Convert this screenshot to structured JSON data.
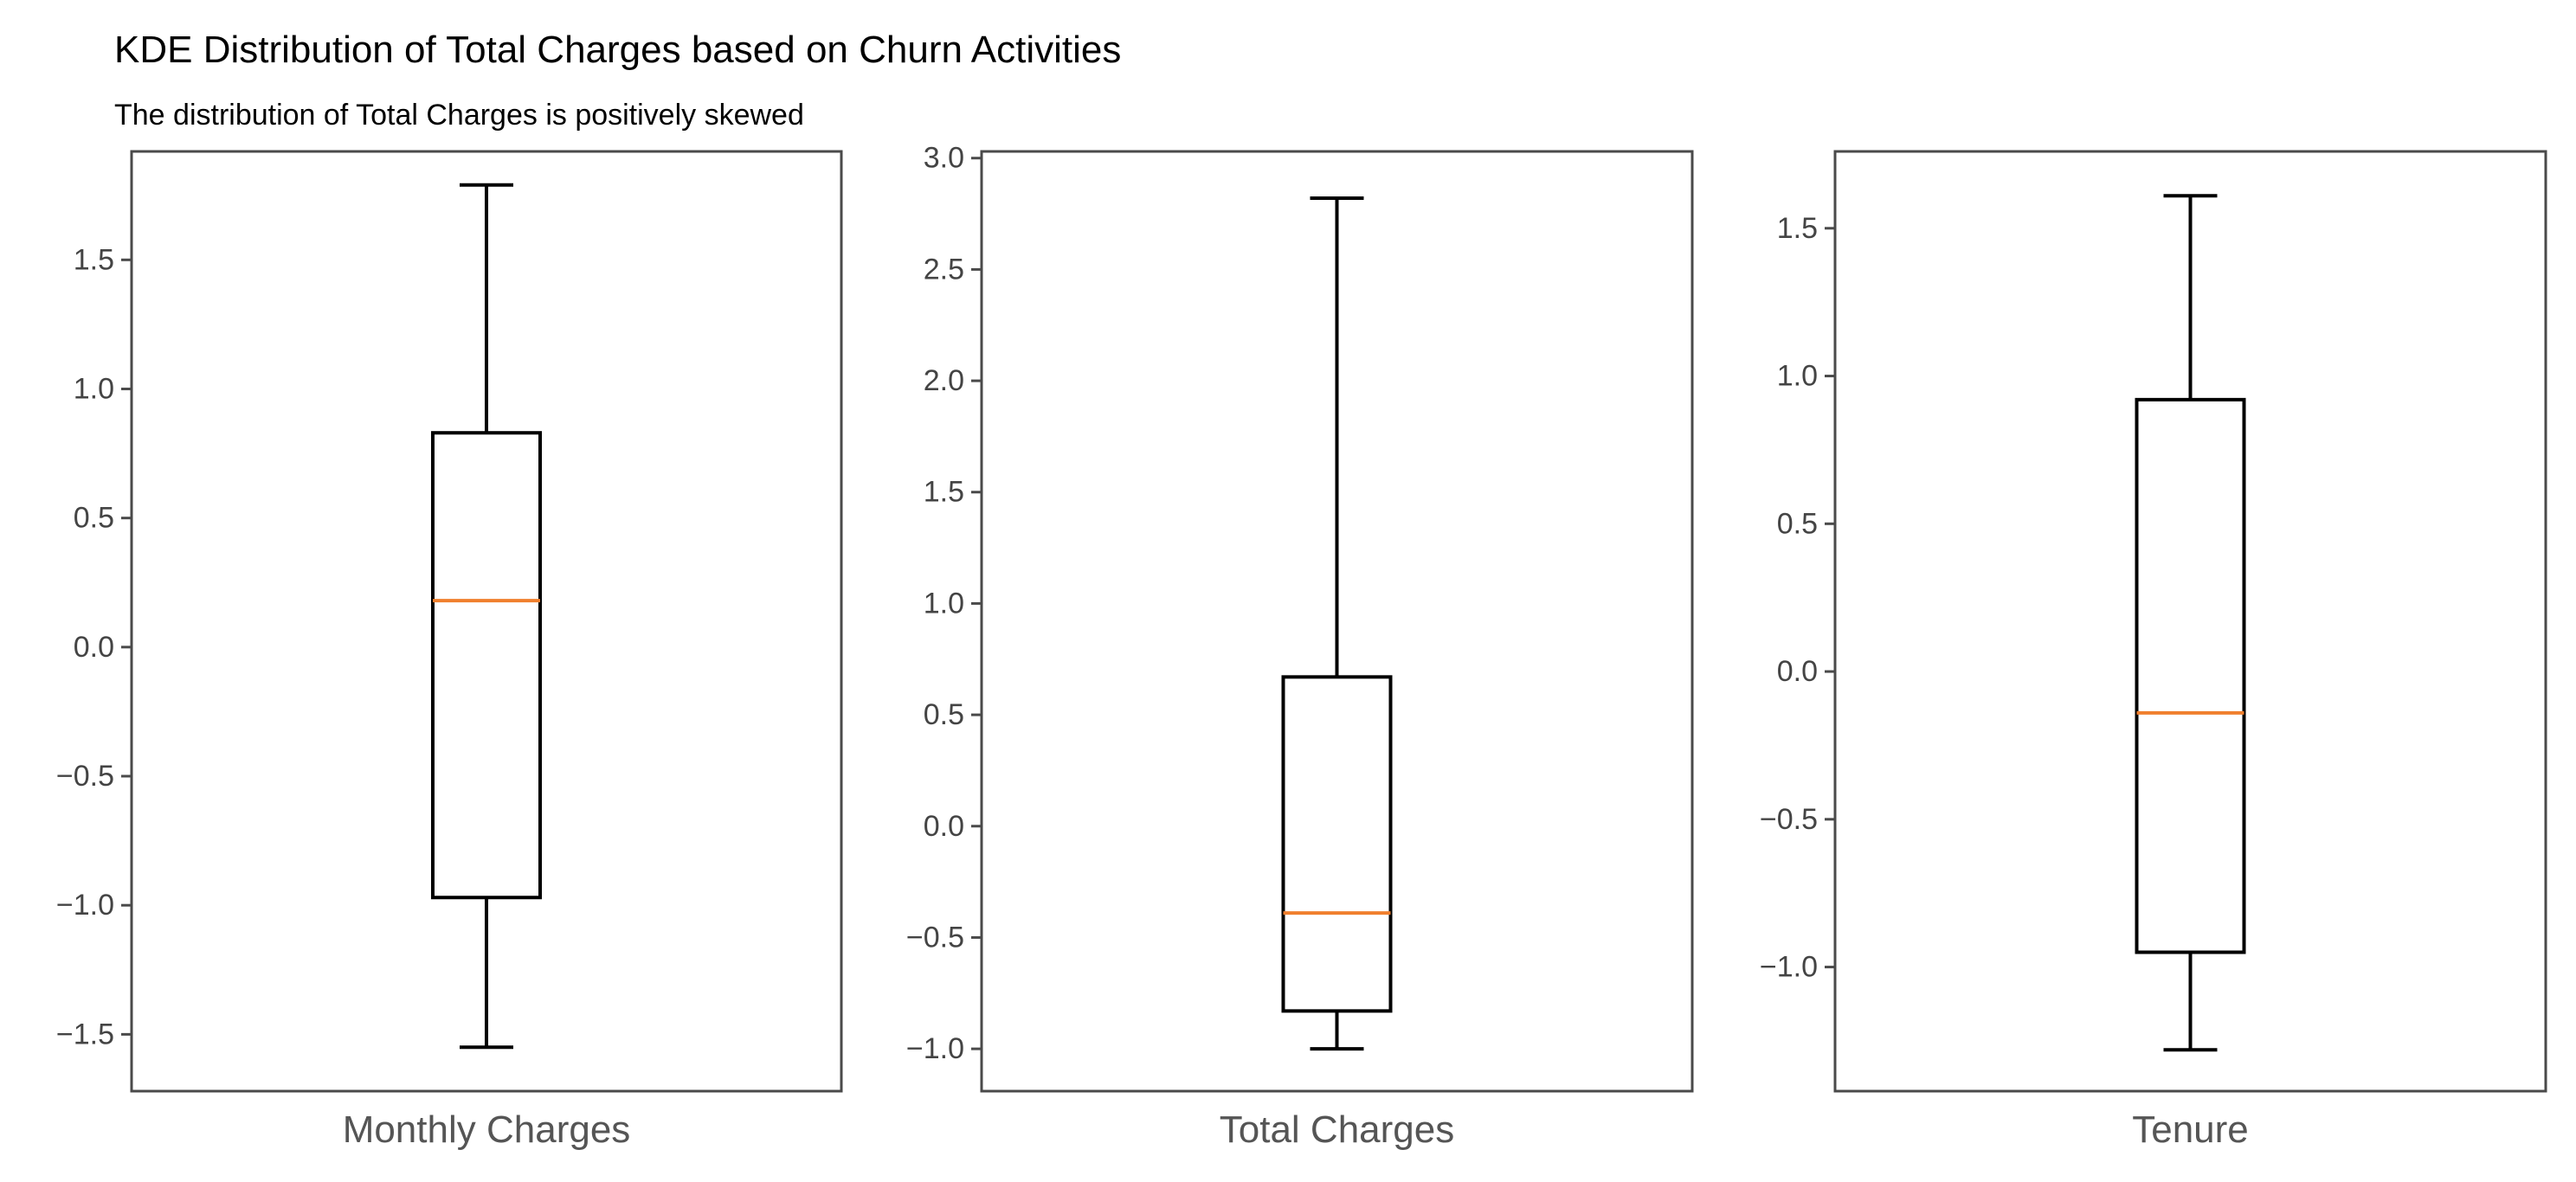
{
  "figure": {
    "title": "KDE Distribution of Total Charges based on Churn Activities",
    "subtitle": "The distribution of Total Charges is positively skewed"
  },
  "colors": {
    "box": "#000000",
    "median": "#f07f2d",
    "frame": "#4a4a4a",
    "tick_text": "#444444",
    "category_text": "#555555"
  },
  "chart_data": [
    {
      "type": "box",
      "category": "Monthly Charges",
      "ylim": [
        -1.72,
        1.92
      ],
      "yticks": [
        -1.5,
        -1.0,
        -0.5,
        0.0,
        0.5,
        1.0,
        1.5
      ],
      "ytick_labels": [
        "−1.5",
        "−1.0",
        "−0.5",
        "0.0",
        "0.5",
        "1.0",
        "1.5"
      ],
      "whisker_low": -1.55,
      "q1": -0.97,
      "median": 0.18,
      "q3": 0.83,
      "whisker_high": 1.79
    },
    {
      "type": "box",
      "category": "Total Charges",
      "ylim": [
        -1.19,
        3.03
      ],
      "yticks": [
        -1.0,
        -0.5,
        0.0,
        0.5,
        1.0,
        1.5,
        2.0,
        2.5,
        3.0
      ],
      "ytick_labels": [
        "−1.0",
        "−0.5",
        "0.0",
        "0.5",
        "1.0",
        "1.5",
        "2.0",
        "2.5",
        "3.0"
      ],
      "whisker_low": -1.0,
      "q1": -0.83,
      "median": -0.39,
      "q3": 0.67,
      "whisker_high": 2.82
    },
    {
      "type": "box",
      "category": "Tenure",
      "ylim": [
        -1.42,
        1.76
      ],
      "yticks": [
        -1.0,
        -0.5,
        0.0,
        0.5,
        1.0,
        1.5
      ],
      "ytick_labels": [
        "−1.0",
        "−0.5",
        "0.0",
        "0.5",
        "1.0",
        "1.5"
      ],
      "whisker_low": -1.28,
      "q1": -0.95,
      "median": -0.14,
      "q3": 0.92,
      "whisker_high": 1.61
    }
  ]
}
